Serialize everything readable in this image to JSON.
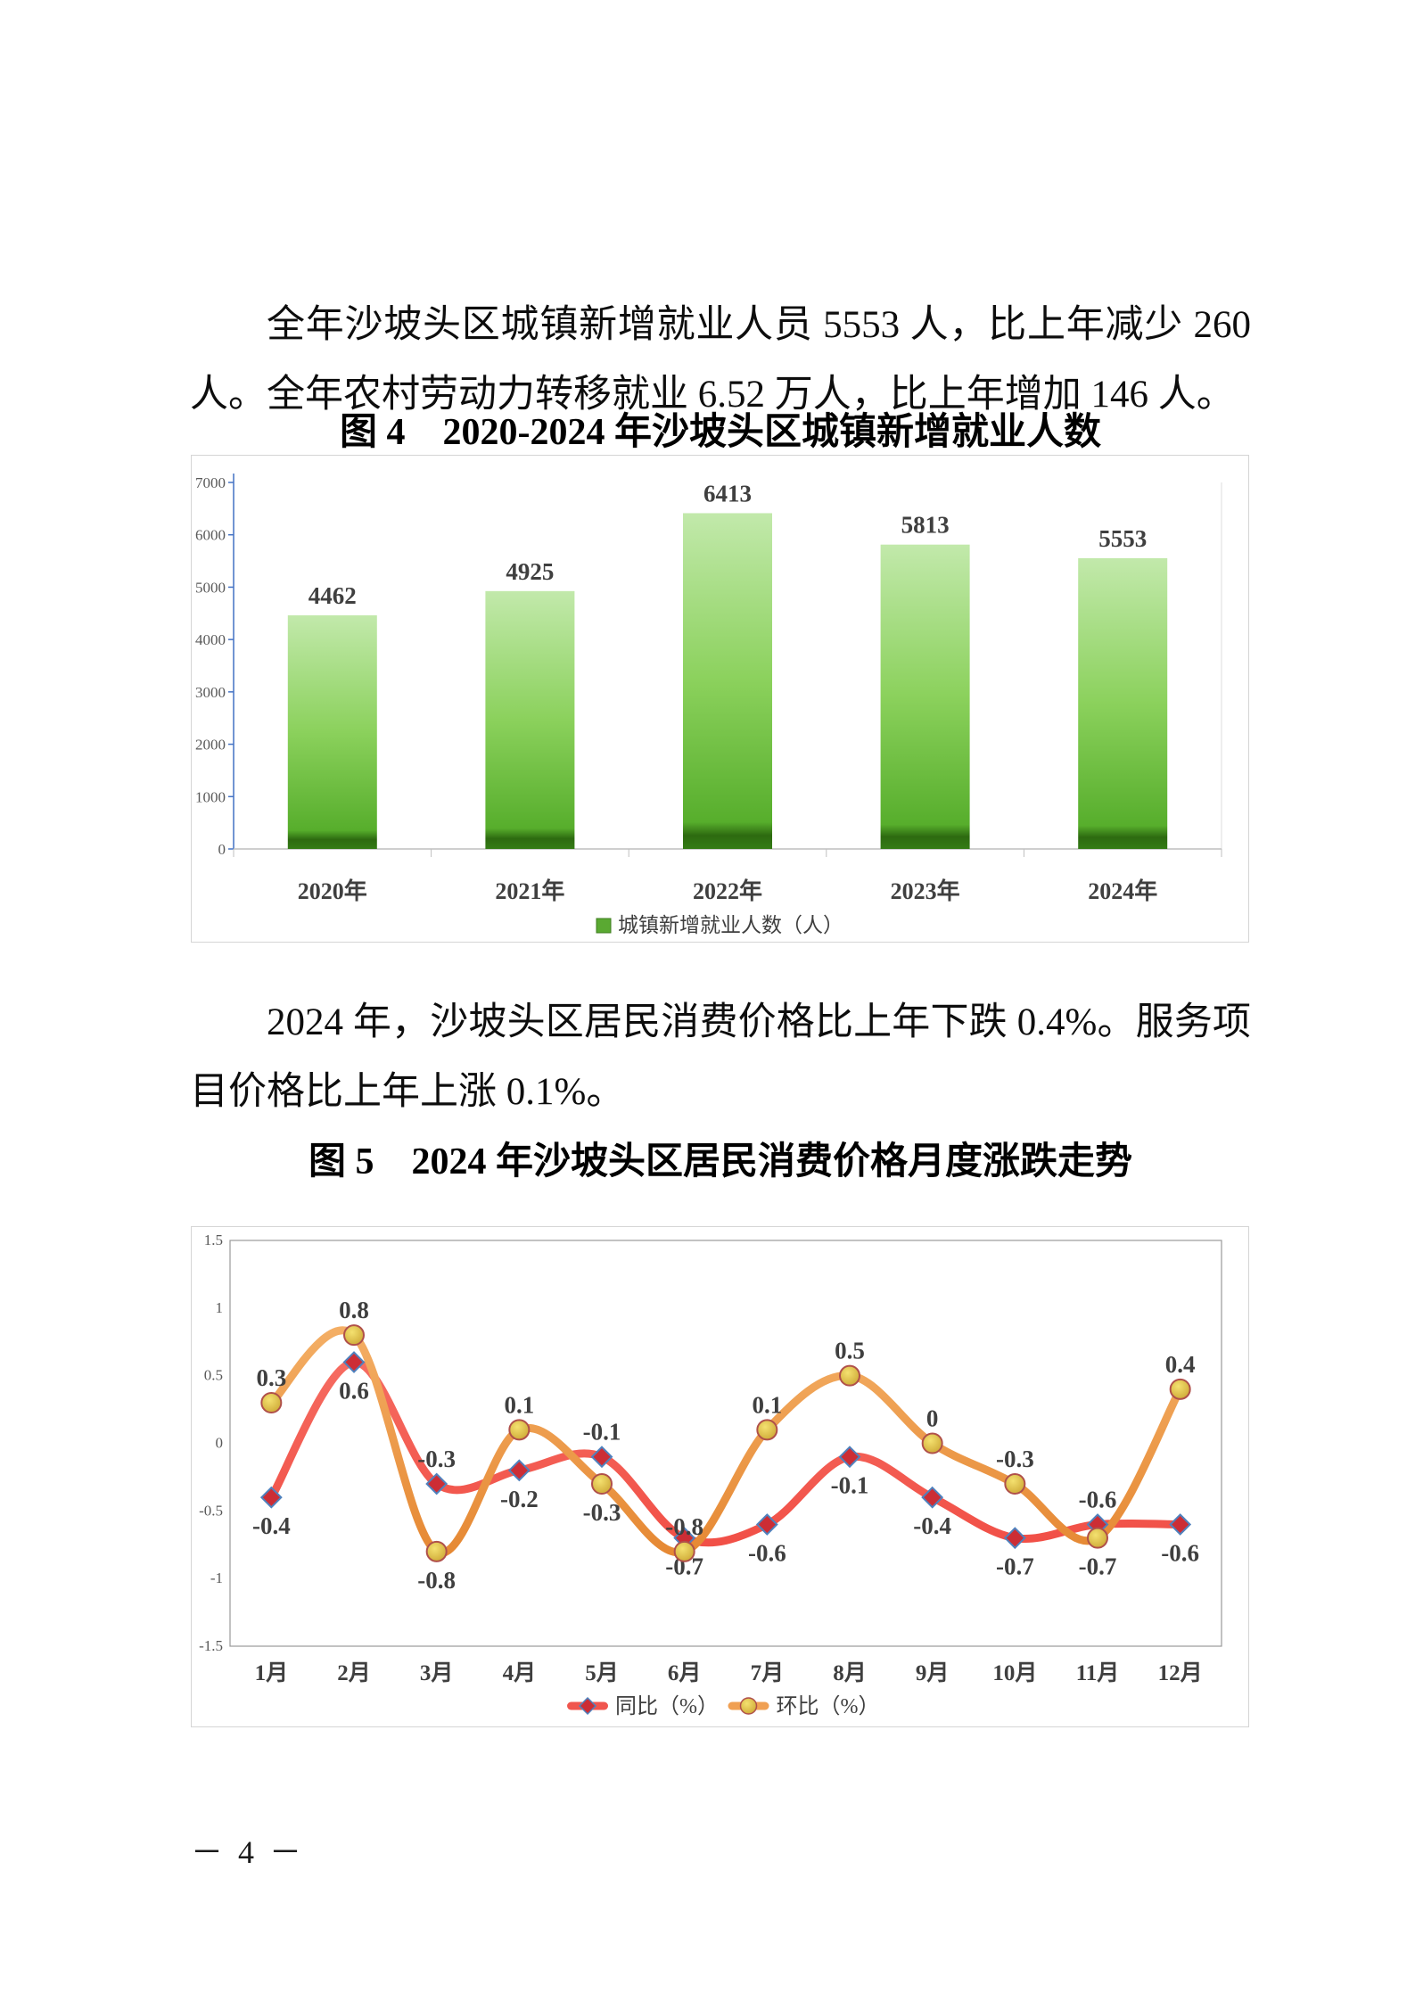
{
  "page": {
    "footer": "－ 4 －",
    "background": "#ffffff"
  },
  "paragraphs": {
    "p1": "全年沙坡头区城镇新增就业人员 5553 人，比上年减少 260 人。全年农村劳动力转移就业 6.52 万人，比上年增加 146 人。",
    "p2": "2024 年，沙坡头区居民消费价格比上年下跌 0.4%。服务项目价格比上年上涨 0.1%。"
  },
  "colors": {
    "bar_gradient_top": "#c2e9ab",
    "bar_gradient_mid": "#8bd15c",
    "bar_gradient_low": "#57ae2c",
    "bar_gradient_bottom": "#2d6a10",
    "bar_axis": "#4472c4",
    "axis_gray": "#bfbfbf",
    "tick_label": "#595959",
    "data_label": "#3f3f3f",
    "tongbi_line": "#f0564e",
    "tongbi_marker_fill": "#cc2d35",
    "tongbi_marker_stroke": "#4f81bd",
    "huanbi_line": "#f0a053",
    "huanbi_marker_fill": "#e3c949",
    "huanbi_marker_stroke": "#b0504a",
    "plot_border": "#9a9a9a",
    "box_border": "#d5d5d5"
  },
  "chart_data": [
    {
      "type": "bar",
      "title": "图 4　2020-2024 年沙坡头区城镇新增就业人数",
      "categories": [
        "2020年",
        "2021年",
        "2022年",
        "2023年",
        "2024年"
      ],
      "values": [
        4462,
        4925,
        6413,
        5813,
        5553
      ],
      "legend": "城镇新增就业人数（人）",
      "xlabel": "",
      "ylabel": "",
      "ylim": [
        0,
        7000
      ],
      "ytick_step": 1000,
      "grid": false,
      "legend_position": "bottom-center"
    },
    {
      "type": "line",
      "title": "图 5　2024 年沙坡头区居民消费价格月度涨跌走势",
      "categories": [
        "1月",
        "2月",
        "3月",
        "4月",
        "5月",
        "6月",
        "7月",
        "8月",
        "9月",
        "10月",
        "11月",
        "12月"
      ],
      "series": [
        {
          "name": "同比（%）",
          "marker": "diamond",
          "values": [
            -0.4,
            0.6,
            -0.3,
            -0.2,
            -0.1,
            -0.7,
            -0.6,
            -0.1,
            -0.4,
            -0.7,
            -0.6,
            -0.6
          ],
          "label_side": [
            "below",
            "below",
            "above",
            "below",
            "above",
            "below",
            "below",
            "below",
            "below",
            "below",
            "above",
            "below"
          ]
        },
        {
          "name": "环比（%）",
          "marker": "circle",
          "values": [
            0.3,
            0.8,
            -0.8,
            0.1,
            -0.3,
            -0.8,
            0.1,
            0.5,
            0,
            -0.3,
            -0.7,
            0.4
          ],
          "label_side": [
            "above",
            "above",
            "below",
            "above",
            "below",
            "above",
            "above",
            "above",
            "above",
            "above",
            "below",
            "above"
          ]
        }
      ],
      "xlabel": "",
      "ylabel": "",
      "ylim": [
        -1.5,
        1.5
      ],
      "ytick_step": 0.5,
      "grid": false,
      "smooth": true,
      "legend_position": "bottom-center"
    }
  ]
}
